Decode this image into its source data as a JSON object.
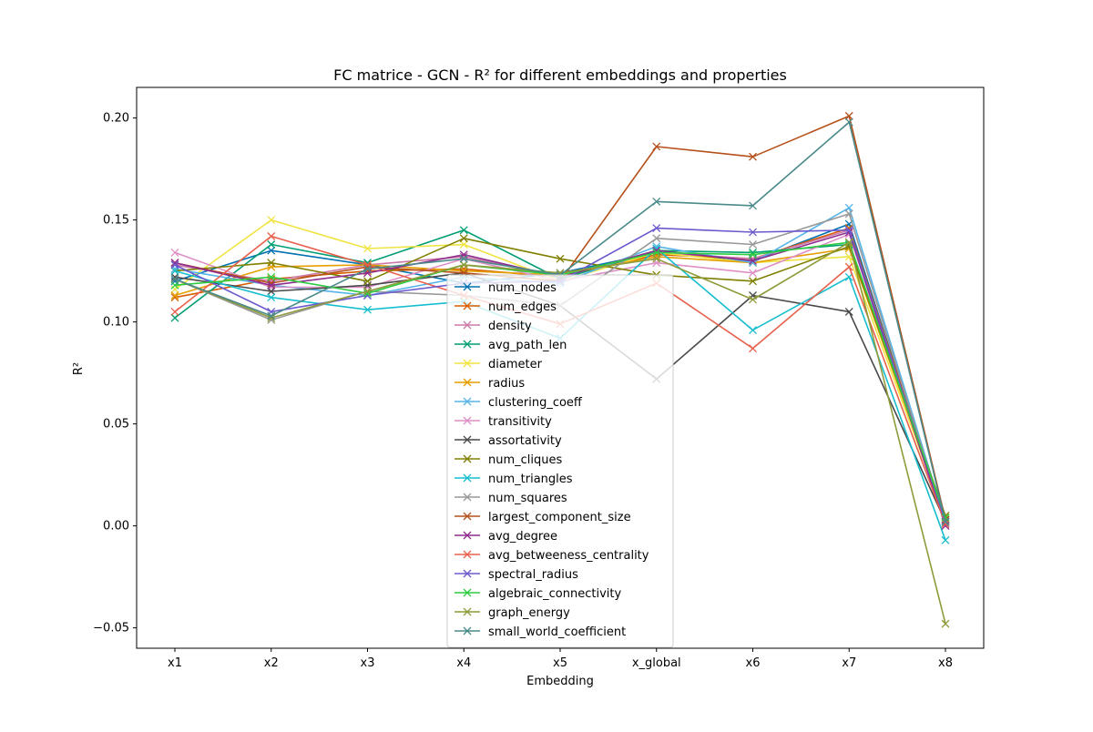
{
  "chart_data": {
    "type": "line",
    "title": "FC matrice - GCN - R² for different embeddings and properties",
    "xlabel": "Embedding",
    "ylabel": "R²",
    "categories": [
      "x1",
      "x2",
      "x3",
      "x4",
      "x5",
      "x_global",
      "x6",
      "x7",
      "x8"
    ],
    "ylim": [
      -0.06,
      0.215
    ],
    "yticks": [
      -0.05,
      0.0,
      0.05,
      0.1,
      0.15,
      0.2
    ],
    "ytick_labels": [
      "−0.05",
      "0.00",
      "0.05",
      "0.10",
      "0.15",
      "0.20"
    ],
    "grid": false,
    "legend_position": "center",
    "marker": "x",
    "series": [
      {
        "name": "num_nodes",
        "color": "#0072B2",
        "values": [
          0.12,
          0.135,
          0.128,
          0.119,
          0.124,
          0.134,
          0.13,
          0.148,
          0.002
        ]
      },
      {
        "name": "num_edges",
        "color": "#D55E00",
        "values": [
          0.112,
          0.121,
          0.125,
          0.126,
          0.122,
          0.133,
          0.131,
          0.146,
          0.003
        ]
      },
      {
        "name": "density",
        "color": "#CC79A7",
        "values": [
          0.128,
          0.12,
          0.128,
          0.132,
          0.122,
          0.134,
          0.131,
          0.145,
          0.001
        ]
      },
      {
        "name": "avg_path_len",
        "color": "#009E73",
        "values": [
          0.102,
          0.138,
          0.129,
          0.145,
          0.121,
          0.135,
          0.134,
          0.138,
          0.003
        ]
      },
      {
        "name": "diameter",
        "color": "#F0E442",
        "values": [
          0.116,
          0.15,
          0.136,
          0.138,
          0.12,
          0.134,
          0.129,
          0.132,
          0.003
        ]
      },
      {
        "name": "radius",
        "color": "#E69F00",
        "values": [
          0.113,
          0.127,
          0.128,
          0.125,
          0.123,
          0.132,
          0.129,
          0.136,
          0.004
        ]
      },
      {
        "name": "clustering_coeff",
        "color": "#56B4E9",
        "values": [
          0.126,
          0.118,
          0.113,
          0.122,
          0.119,
          0.137,
          0.129,
          0.156,
          0.002
        ]
      },
      {
        "name": "transitivity",
        "color": "#DE8FC5",
        "values": [
          0.134,
          0.117,
          0.117,
          0.131,
          0.12,
          0.129,
          0.124,
          0.143,
          0.001
        ]
      },
      {
        "name": "assortativity",
        "color": "#494949",
        "values": [
          0.122,
          0.115,
          0.118,
          0.124,
          0.108,
          0.072,
          0.113,
          0.105,
          0.002
        ]
      },
      {
        "name": "num_cliques",
        "color": "#808000",
        "values": [
          0.125,
          0.129,
          0.12,
          0.141,
          0.131,
          0.123,
          0.12,
          0.137,
          0.005
        ]
      },
      {
        "name": "num_triangles",
        "color": "#17BECF",
        "values": [
          0.125,
          0.112,
          0.106,
          0.11,
          0.092,
          0.136,
          0.096,
          0.122,
          -0.007
        ]
      },
      {
        "name": "num_squares",
        "color": "#999999",
        "values": [
          0.121,
          0.101,
          0.115,
          0.113,
          0.108,
          0.141,
          0.138,
          0.153,
          0.001
        ]
      },
      {
        "name": "largest_component_size",
        "color": "#B5501B",
        "values": [
          0.129,
          0.119,
          0.127,
          0.124,
          0.12,
          0.186,
          0.181,
          0.201,
          0.003
        ]
      },
      {
        "name": "avg_degree",
        "color": "#8E2C8E",
        "values": [
          0.129,
          0.118,
          0.124,
          0.133,
          0.122,
          0.135,
          0.13,
          0.144,
          0.0
        ]
      },
      {
        "name": "avg_betweeness_centrality",
        "color": "#E8604C",
        "values": [
          0.105,
          0.142,
          0.128,
          0.113,
          0.099,
          0.119,
          0.087,
          0.127,
          0.001
        ]
      },
      {
        "name": "spectral_radius",
        "color": "#6A5ACD",
        "values": [
          0.128,
          0.105,
          0.113,
          0.119,
          0.12,
          0.146,
          0.144,
          0.145,
          0.002
        ]
      },
      {
        "name": "algebraic_connectivity",
        "color": "#2ECC40",
        "values": [
          0.118,
          0.122,
          0.114,
          0.128,
          0.123,
          0.134,
          0.133,
          0.139,
          0.004
        ]
      },
      {
        "name": "graph_energy",
        "color": "#8F9A3A",
        "values": [
          0.121,
          0.102,
          0.115,
          0.128,
          0.124,
          0.131,
          0.111,
          0.139,
          -0.048
        ]
      },
      {
        "name": "small_world_coefficient",
        "color": "#4A8A8A",
        "values": [
          0.121,
          0.103,
          0.126,
          0.131,
          0.123,
          0.159,
          0.157,
          0.198,
          0.002
        ]
      }
    ]
  }
}
